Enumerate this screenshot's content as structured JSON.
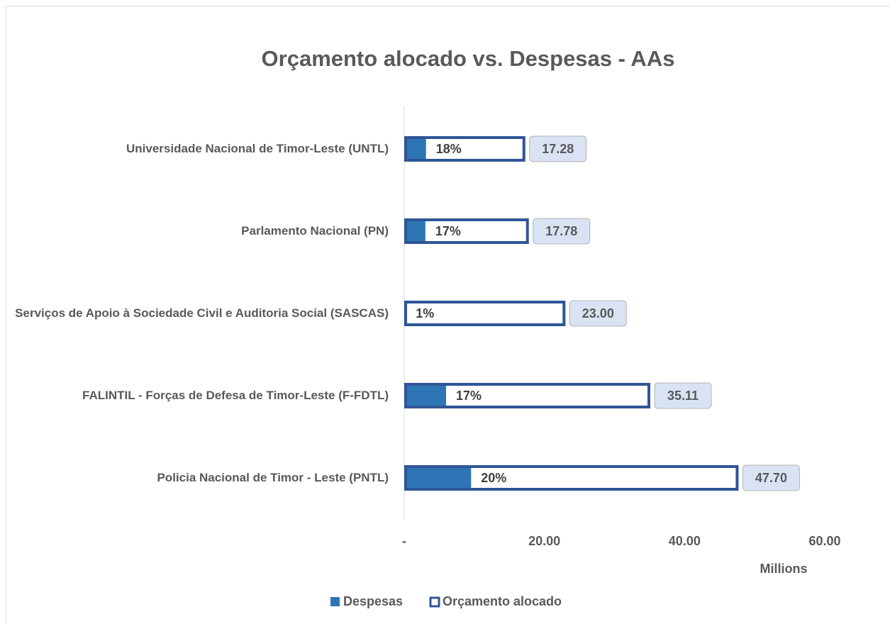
{
  "chart_data": {
    "type": "bar",
    "orientation": "horizontal",
    "title": "Orçamento alocado vs. Despesas - AAs",
    "categories": [
      "Universidade Nacional de Timor-Leste (UNTL)",
      "Parlamento Nacional (PN)",
      "Serviços de Apoio à Sociedade Civil e Auditoria Social (SASCAS)",
      "FALINTIL - Forças de Defesa de Timor-Leste (F-FDTL)",
      "Policia Nacional de Timor - Leste (PNTL)"
    ],
    "series": [
      {
        "name": "Despesas",
        "color": "#2e75b6",
        "style": "filled",
        "values": [
          3.11,
          3.02,
          0.23,
          5.97,
          9.54
        ],
        "percent_labels": [
          "18%",
          "17%",
          "1%",
          "17%",
          "20%"
        ]
      },
      {
        "name": "Orçamento alocado",
        "color": "#2f5597",
        "style": "outline",
        "values": [
          17.28,
          17.78,
          23.0,
          35.11,
          47.7
        ],
        "value_labels": [
          "17.28",
          "17.78",
          "23.00",
          "35.11",
          "47.70"
        ]
      }
    ],
    "xlim": [
      0,
      60
    ],
    "xticks": [
      {
        "value": 0,
        "label": "-"
      },
      {
        "value": 20,
        "label": "20.00"
      },
      {
        "value": 40,
        "label": "40.00"
      },
      {
        "value": 60,
        "label": "60.00"
      }
    ],
    "xlabel": "Millions"
  }
}
